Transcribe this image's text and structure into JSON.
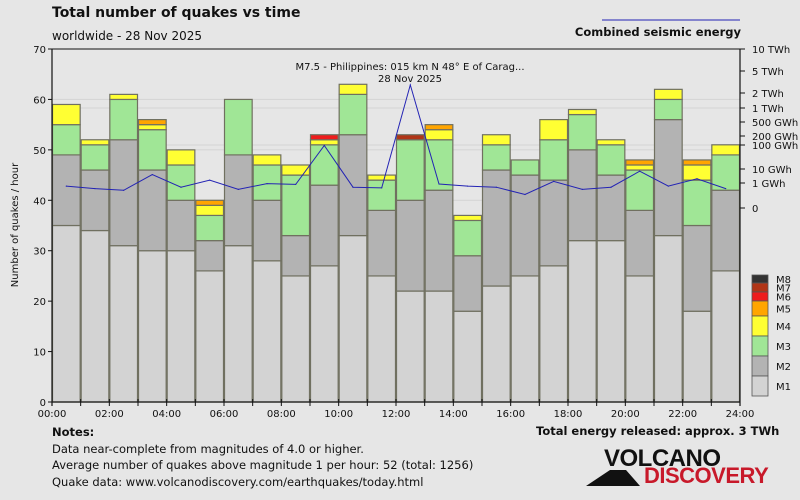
{
  "chart_data": {
    "type": "bar",
    "stacked": true,
    "title": "Total number of quakes vs time",
    "subtitle": "worldwide - 28 Nov 2025",
    "ylabel": "Number of quakes / hour",
    "ylim": [
      0,
      70
    ],
    "yticks": [
      0,
      10,
      20,
      30,
      40,
      50,
      60,
      70
    ],
    "xlim": [
      0,
      24
    ],
    "xtick_labels": [
      "00:00",
      "02:00",
      "04:00",
      "06:00",
      "08:00",
      "10:00",
      "12:00",
      "14:00",
      "16:00",
      "18:00",
      "20:00",
      "22:00",
      "24:00"
    ],
    "grid": true,
    "categories": [
      "00",
      "01",
      "02",
      "03",
      "04",
      "05",
      "06",
      "07",
      "08",
      "09",
      "10",
      "11",
      "12",
      "13",
      "14",
      "15",
      "16",
      "17",
      "18",
      "19",
      "20",
      "21",
      "22",
      "23"
    ],
    "series": [
      {
        "name": "M1",
        "color": "#d3d3d3",
        "values": [
          35,
          34,
          31,
          30,
          30,
          26,
          31,
          28,
          25,
          27,
          33,
          25,
          22,
          22,
          18,
          23,
          25,
          27,
          32,
          32,
          25,
          33,
          18,
          26
        ]
      },
      {
        "name": "M2",
        "color": "#b3b3b3",
        "values": [
          14,
          12,
          21,
          16,
          10,
          6,
          18,
          12,
          8,
          16,
          20,
          13,
          18,
          20,
          11,
          23,
          20,
          17,
          18,
          13,
          13,
          23,
          17,
          16
        ]
      },
      {
        "name": "M3",
        "color": "#a0e696",
        "values": [
          6,
          5,
          8,
          8,
          7,
          5,
          11,
          7,
          12,
          8,
          8,
          6,
          12,
          10,
          7,
          5,
          3,
          8,
          7,
          6,
          8,
          4,
          9,
          7
        ]
      },
      {
        "name": "M4",
        "color": "#ffff33",
        "values": [
          4,
          1,
          1,
          1,
          3,
          2,
          0,
          2,
          2,
          1,
          2,
          1,
          0,
          2,
          1,
          2,
          0,
          4,
          1,
          1,
          1,
          2,
          3,
          2
        ]
      },
      {
        "name": "M5",
        "color": "#ffa500",
        "values": [
          0,
          0,
          0,
          1,
          0,
          1,
          0,
          0,
          0,
          0,
          0,
          0,
          0,
          1,
          0,
          0,
          0,
          0,
          0,
          0,
          1,
          0,
          1,
          0
        ]
      },
      {
        "name": "M6",
        "color": "#ee1c1c",
        "values": [
          0,
          0,
          0,
          0,
          0,
          0,
          0,
          0,
          0,
          1,
          0,
          0,
          0,
          0,
          0,
          0,
          0,
          0,
          0,
          0,
          0,
          0,
          0,
          0
        ]
      },
      {
        "name": "M7",
        "color": "#b03517",
        "values": [
          0,
          0,
          0,
          0,
          0,
          0,
          0,
          0,
          0,
          0,
          0,
          0,
          1,
          0,
          0,
          0,
          0,
          0,
          0,
          0,
          0,
          0,
          0,
          0
        ]
      },
      {
        "name": "M8",
        "color": "#333333",
        "values": [
          0,
          0,
          0,
          0,
          0,
          0,
          0,
          0,
          0,
          0,
          0,
          0,
          0,
          0,
          0,
          0,
          0,
          0,
          0,
          0,
          0,
          0,
          0,
          0
        ]
      }
    ],
    "energy": {
      "name": "Combined seismic energy",
      "color": "#2323b4",
      "unit": "GWh",
      "axis_ticks": [
        {
          "label": "10 TWh",
          "value": 10000
        },
        {
          "label": "5 TWh",
          "value": 5000
        },
        {
          "label": "2 TWh",
          "value": 2000
        },
        {
          "label": "1 TWh",
          "value": 1000
        },
        {
          "label": "500 GWh",
          "value": 500
        },
        {
          "label": "200 GWh",
          "value": 200
        },
        {
          "label": "100 GWh",
          "value": 100
        },
        {
          "label": "10 GWh",
          "value": 10
        },
        {
          "label": "1 GWh",
          "value": 1
        },
        {
          "label": "0",
          "value": 0
        }
      ],
      "values": [
        0.6,
        0.4,
        0.3,
        4,
        0.5,
        1.6,
        0.35,
        0.9,
        0.8,
        95,
        0.5,
        0.45,
        2800,
        0.85,
        0.6,
        0.5,
        0.15,
        1.3,
        0.35,
        0.5,
        7,
        0.6,
        2,
        0.4
      ]
    },
    "annotation": {
      "line1": "M7.5 - Philippines: 015 km N 48° E of Carag...",
      "line2": "28 Nov 2025",
      "hour": 12
    },
    "legend": [
      "M8",
      "M7",
      "M6",
      "M5",
      "M4",
      "M3",
      "M2",
      "M1"
    ],
    "legend_position": "right"
  },
  "notes": {
    "heading": "Notes:",
    "lines": [
      "Data near-complete from magnitudes of 4.0 or higher.",
      "Average number of quakes above magnitude 1 per hour: 52 (total: 1256)",
      "Quake data: www.volcanodiscovery.com/earthquakes/today.html"
    ],
    "total_energy": "Total energy released: approx. 3 TWh"
  },
  "logo": {
    "line1": "VOLCANO",
    "line2": "DISCOVERY"
  }
}
